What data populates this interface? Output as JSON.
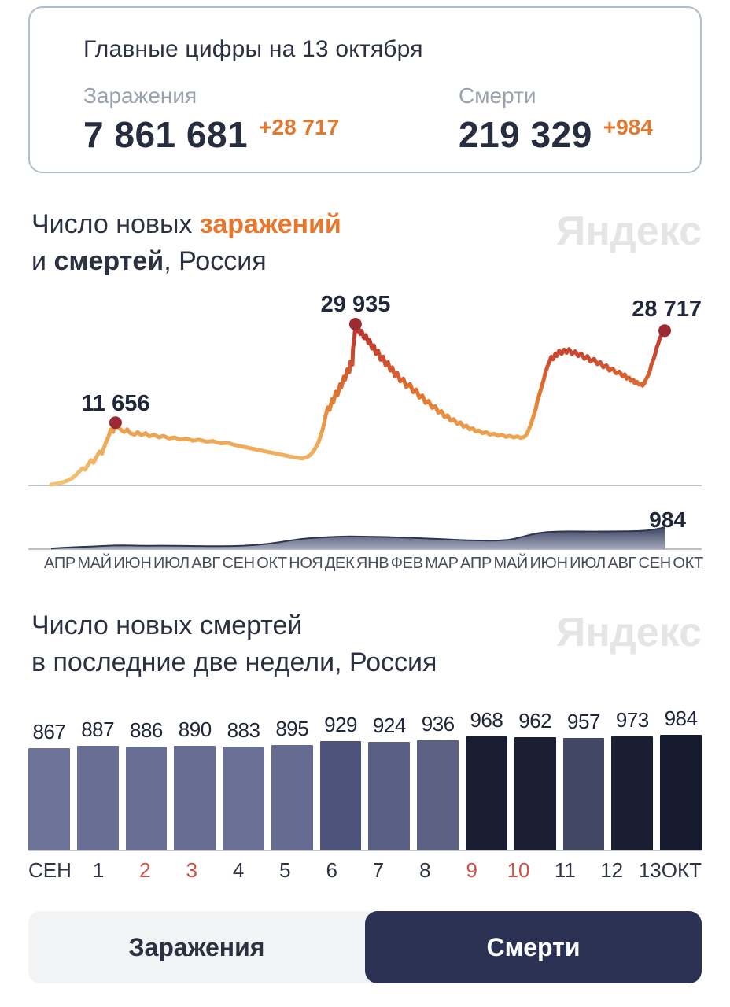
{
  "summary_card": {
    "title": "Главные цифры на 13 октября",
    "stats": [
      {
        "label": "Заражения",
        "value": "7 861 681",
        "delta": "+28 717"
      },
      {
        "label": "Смерти",
        "value": "219 329",
        "delta": "+984"
      }
    ]
  },
  "watermark": "Яндекс",
  "chart1": {
    "title_parts": {
      "prefix": "Число новых ",
      "orange": "заражений",
      "line2_prefix": "и ",
      "bold": "смертей",
      "suffix": ", Россия"
    }
  },
  "chart2": {
    "title_line1": "Число новых смертей",
    "title_line2": "в последние две недели, Россия"
  },
  "toggle": {
    "options": [
      {
        "label": "Заражения",
        "active": false
      },
      {
        "label": "Смерти",
        "active": true
      }
    ]
  },
  "colors": {
    "accent_orange": "#e2772e",
    "dark_navy": "#2b3141",
    "line_low": "#f2c276",
    "line_high": "#b5302c",
    "peak_dot": "#9b2a33",
    "area_top": "#363c5c",
    "area_bottom": "#a3a8bc",
    "weekend_red": "#cd5145",
    "toggle_active_bg": "#2b3153",
    "toggle_bg": "#f2f3f5"
  },
  "chart_data": [
    {
      "type": "line",
      "name": "new-infections",
      "title": "Число новых заражений, Россия",
      "x_domain": [
        "АПР 2020",
        "13 ОКТ 2021"
      ],
      "ylim": [
        0,
        31000
      ],
      "annotations": [
        {
          "x": 0.105,
          "value": 11656,
          "label": "11 656"
        },
        {
          "x": 0.496,
          "value": 29935,
          "label": "29 935"
        },
        {
          "x": 1.0,
          "value": 28717,
          "label": "28 717"
        }
      ],
      "points": [
        [
          0,
          150
        ],
        [
          0.009,
          300
        ],
        [
          0.018,
          550
        ],
        [
          0.027,
          900
        ],
        [
          0.035,
          1400
        ],
        [
          0.041,
          2000
        ],
        [
          0.046,
          2600
        ],
        [
          0.051,
          3200
        ],
        [
          0.055,
          2900
        ],
        [
          0.06,
          3800
        ],
        [
          0.065,
          4700
        ],
        [
          0.069,
          4200
        ],
        [
          0.074,
          5300
        ],
        [
          0.079,
          6300
        ],
        [
          0.083,
          5900
        ],
        [
          0.088,
          7600
        ],
        [
          0.094,
          9200
        ],
        [
          0.097,
          10400
        ],
        [
          0.101,
          9900
        ],
        [
          0.105,
          11656
        ],
        [
          0.109,
          10900
        ],
        [
          0.114,
          10300
        ],
        [
          0.119,
          9900
        ],
        [
          0.124,
          10400
        ],
        [
          0.129,
          9700
        ],
        [
          0.136,
          9400
        ],
        [
          0.141,
          9900
        ],
        [
          0.147,
          9300
        ],
        [
          0.154,
          9700
        ],
        [
          0.16,
          9100
        ],
        [
          0.168,
          9400
        ],
        [
          0.176,
          8900
        ],
        [
          0.183,
          9200
        ],
        [
          0.192,
          8700
        ],
        [
          0.201,
          8900
        ],
        [
          0.21,
          8500
        ],
        [
          0.221,
          8700
        ],
        [
          0.231,
          8300
        ],
        [
          0.241,
          8500
        ],
        [
          0.253,
          8100
        ],
        [
          0.264,
          8200
        ],
        [
          0.276,
          7800
        ],
        [
          0.287,
          7900
        ],
        [
          0.299,
          7500
        ],
        [
          0.312,
          7200
        ],
        [
          0.324,
          6900
        ],
        [
          0.337,
          6600
        ],
        [
          0.35,
          6300
        ],
        [
          0.363,
          6000
        ],
        [
          0.376,
          5700
        ],
        [
          0.388,
          5400
        ],
        [
          0.4,
          5150
        ],
        [
          0.409,
          5000
        ],
        [
          0.417,
          5250
        ],
        [
          0.423,
          5700
        ],
        [
          0.429,
          6600
        ],
        [
          0.435,
          7800
        ],
        [
          0.44,
          9400
        ],
        [
          0.444,
          11000
        ],
        [
          0.447,
          12800
        ],
        [
          0.451,
          14500
        ],
        [
          0.454,
          14000
        ],
        [
          0.458,
          16000
        ],
        [
          0.46,
          15400
        ],
        [
          0.464,
          17400
        ],
        [
          0.467,
          16800
        ],
        [
          0.471,
          18800
        ],
        [
          0.473,
          18200
        ],
        [
          0.477,
          20200
        ],
        [
          0.479,
          19600
        ],
        [
          0.483,
          21600
        ],
        [
          0.486,
          21000
        ],
        [
          0.488,
          23000
        ],
        [
          0.491,
          22400
        ],
        [
          0.492,
          25500
        ],
        [
          0.494,
          27000
        ],
        [
          0.495,
          28500
        ],
        [
          0.496,
          29935
        ],
        [
          0.499,
          28600
        ],
        [
          0.501,
          29200
        ],
        [
          0.504,
          28100
        ],
        [
          0.506,
          28700
        ],
        [
          0.51,
          27300
        ],
        [
          0.513,
          27900
        ],
        [
          0.517,
          26400
        ],
        [
          0.519,
          27000
        ],
        [
          0.523,
          25400
        ],
        [
          0.526,
          26000
        ],
        [
          0.529,
          24400
        ],
        [
          0.533,
          25000
        ],
        [
          0.537,
          23300
        ],
        [
          0.541,
          23900
        ],
        [
          0.545,
          22300
        ],
        [
          0.549,
          22900
        ],
        [
          0.553,
          21300
        ],
        [
          0.556,
          21900
        ],
        [
          0.56,
          20300
        ],
        [
          0.564,
          20900
        ],
        [
          0.569,
          19300
        ],
        [
          0.574,
          19800
        ],
        [
          0.579,
          18300
        ],
        [
          0.585,
          18800
        ],
        [
          0.59,
          17300
        ],
        [
          0.595,
          17800
        ],
        [
          0.6,
          16300
        ],
        [
          0.605,
          16700
        ],
        [
          0.61,
          15300
        ],
        [
          0.615,
          15700
        ],
        [
          0.621,
          14400
        ],
        [
          0.626,
          14700
        ],
        [
          0.631,
          13500
        ],
        [
          0.636,
          13800
        ],
        [
          0.641,
          12700
        ],
        [
          0.646,
          13000
        ],
        [
          0.651,
          12000
        ],
        [
          0.656,
          12300
        ],
        [
          0.662,
          11400
        ],
        [
          0.667,
          11700
        ],
        [
          0.672,
          10900
        ],
        [
          0.677,
          11100
        ],
        [
          0.682,
          10400
        ],
        [
          0.687,
          10600
        ],
        [
          0.692,
          10000
        ],
        [
          0.697,
          10200
        ],
        [
          0.703,
          9700
        ],
        [
          0.709,
          9900
        ],
        [
          0.715,
          9400
        ],
        [
          0.722,
          9600
        ],
        [
          0.728,
          9200
        ],
        [
          0.735,
          9400
        ],
        [
          0.741,
          9000
        ],
        [
          0.747,
          9200
        ],
        [
          0.754,
          8900
        ],
        [
          0.76,
          9100
        ],
        [
          0.765,
          8800
        ],
        [
          0.771,
          9000
        ],
        [
          0.774,
          9300
        ],
        [
          0.778,
          10200
        ],
        [
          0.782,
          11400
        ],
        [
          0.786,
          12800
        ],
        [
          0.79,
          14300
        ],
        [
          0.792,
          15400
        ],
        [
          0.796,
          17000
        ],
        [
          0.799,
          18100
        ],
        [
          0.803,
          19700
        ],
        [
          0.805,
          20700
        ],
        [
          0.809,
          22100
        ],
        [
          0.812,
          22900
        ],
        [
          0.815,
          23900
        ],
        [
          0.818,
          23400
        ],
        [
          0.822,
          24500
        ],
        [
          0.824,
          24000
        ],
        [
          0.828,
          25000
        ],
        [
          0.832,
          24400
        ],
        [
          0.836,
          25200
        ],
        [
          0.84,
          24600
        ],
        [
          0.844,
          25300
        ],
        [
          0.849,
          24400
        ],
        [
          0.854,
          24900
        ],
        [
          0.859,
          24000
        ],
        [
          0.864,
          24500
        ],
        [
          0.869,
          23500
        ],
        [
          0.874,
          24000
        ],
        [
          0.879,
          23000
        ],
        [
          0.885,
          23500
        ],
        [
          0.89,
          22500
        ],
        [
          0.895,
          22900
        ],
        [
          0.9,
          21900
        ],
        [
          0.905,
          22300
        ],
        [
          0.91,
          21300
        ],
        [
          0.915,
          21700
        ],
        [
          0.921,
          20800
        ],
        [
          0.926,
          21100
        ],
        [
          0.931,
          20300
        ],
        [
          0.935,
          20600
        ],
        [
          0.938,
          19800
        ],
        [
          0.942,
          20000
        ],
        [
          0.945,
          19400
        ],
        [
          0.949,
          19600
        ],
        [
          0.951,
          19000
        ],
        [
          0.955,
          19200
        ],
        [
          0.958,
          18700
        ],
        [
          0.962,
          18900
        ],
        [
          0.964,
          18500
        ],
        [
          0.967,
          19000
        ],
        [
          0.969,
          19600
        ],
        [
          0.973,
          20400
        ],
        [
          0.976,
          21300
        ],
        [
          0.978,
          22300
        ],
        [
          0.982,
          23500
        ],
        [
          0.985,
          24600
        ],
        [
          0.987,
          25600
        ],
        [
          0.99,
          26500
        ],
        [
          0.992,
          27300
        ],
        [
          0.995,
          28000
        ],
        [
          0.997,
          28400
        ],
        [
          1,
          28717
        ]
      ]
    },
    {
      "type": "area",
      "name": "new-deaths-area",
      "title": "Число новых смертей, Россия",
      "x_domain": [
        "АПР 2020",
        "13 ОКТ 2021"
      ],
      "ylim": [
        0,
        984
      ],
      "annotations": [
        {
          "x": 1.0,
          "value": 984,
          "label": "984"
        }
      ],
      "x_ticks": [
        "АПР",
        "МАЙ",
        "ИЮН",
        "ИЮЛ",
        "АВГ",
        "СЕН",
        "ОКТ",
        "НОЯ",
        "ДЕК",
        "ЯНВ",
        "ФЕВ",
        "МАР",
        "АПР",
        "МАЙ",
        "ИЮН",
        "ИЮЛ",
        "АВГ",
        "СЕН",
        "ОКТ"
      ],
      "points": [
        [
          0,
          30
        ],
        [
          0.019,
          60
        ],
        [
          0.045,
          95
        ],
        [
          0.064,
          115
        ],
        [
          0.083,
          140
        ],
        [
          0.103,
          160
        ],
        [
          0.115,
          170
        ],
        [
          0.128,
          163
        ],
        [
          0.141,
          155
        ],
        [
          0.16,
          150
        ],
        [
          0.179,
          153
        ],
        [
          0.199,
          148
        ],
        [
          0.218,
          143
        ],
        [
          0.237,
          138
        ],
        [
          0.256,
          132
        ],
        [
          0.276,
          130
        ],
        [
          0.295,
          138
        ],
        [
          0.314,
          155
        ],
        [
          0.333,
          185
        ],
        [
          0.353,
          240
        ],
        [
          0.372,
          310
        ],
        [
          0.391,
          390
        ],
        [
          0.41,
          460
        ],
        [
          0.429,
          505
        ],
        [
          0.449,
          535
        ],
        [
          0.468,
          560
        ],
        [
          0.487,
          572
        ],
        [
          0.506,
          563
        ],
        [
          0.526,
          555
        ],
        [
          0.545,
          545
        ],
        [
          0.564,
          528
        ],
        [
          0.583,
          508
        ],
        [
          0.603,
          487
        ],
        [
          0.622,
          466
        ],
        [
          0.641,
          443
        ],
        [
          0.66,
          418
        ],
        [
          0.679,
          398
        ],
        [
          0.699,
          385
        ],
        [
          0.714,
          378
        ],
        [
          0.727,
          383
        ],
        [
          0.744,
          410
        ],
        [
          0.756,
          470
        ],
        [
          0.769,
          560
        ],
        [
          0.782,
          650
        ],
        [
          0.795,
          720
        ],
        [
          0.808,
          765
        ],
        [
          0.827,
          788
        ],
        [
          0.846,
          795
        ],
        [
          0.865,
          790
        ],
        [
          0.885,
          786
        ],
        [
          0.904,
          790
        ],
        [
          0.923,
          794
        ],
        [
          0.942,
          800
        ],
        [
          0.958,
          812
        ],
        [
          0.971,
          835
        ],
        [
          0.983,
          880
        ],
        [
          0.994,
          940
        ],
        [
          1,
          984
        ]
      ]
    },
    {
      "type": "bar",
      "name": "deaths-last-two-weeks",
      "title": "Число новых смертей в последние две недели, Россия",
      "ymax": 984,
      "values": [
        867,
        887,
        886,
        890,
        883,
        895,
        929,
        924,
        936,
        968,
        962,
        957,
        973,
        984
      ],
      "bar_colors": [
        "#6d7398",
        "#696f94",
        "#696f94",
        "#686e93",
        "#6b7196",
        "#666c91",
        "#4d537a",
        "#5a6085",
        "#5d6284",
        "#191d33",
        "#1b1f35",
        "#414764",
        "#1a1e33",
        "#161a2e"
      ],
      "categories": [
        {
          "label": "СЕН",
          "red": false
        },
        {
          "label": "1",
          "red": false
        },
        {
          "label": "2",
          "red": true
        },
        {
          "label": "3",
          "red": true
        },
        {
          "label": "4",
          "red": false
        },
        {
          "label": "5",
          "red": false
        },
        {
          "label": "6",
          "red": false
        },
        {
          "label": "7",
          "red": false
        },
        {
          "label": "8",
          "red": false
        },
        {
          "label": "9",
          "red": true
        },
        {
          "label": "10",
          "red": true
        },
        {
          "label": "11",
          "red": false
        },
        {
          "label": "12",
          "red": false
        },
        {
          "label": "13ОКТ",
          "red": false
        }
      ]
    }
  ]
}
